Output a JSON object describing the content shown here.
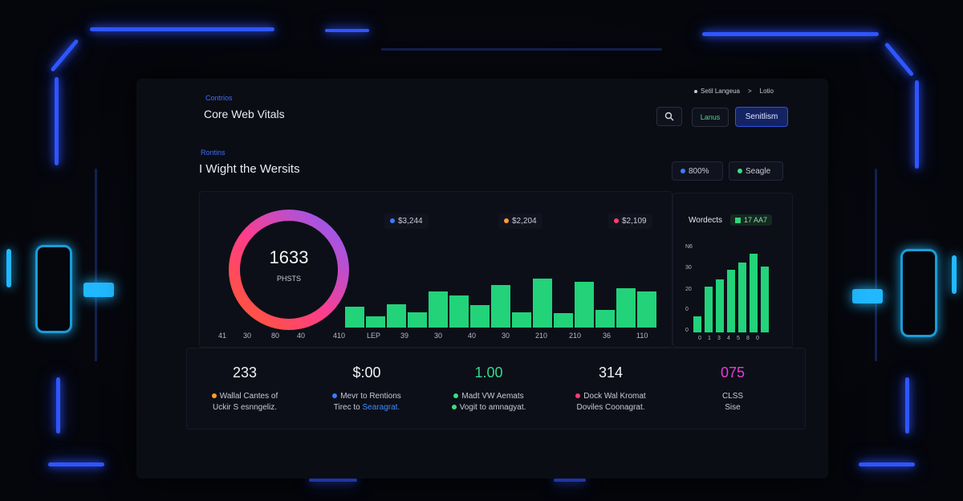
{
  "header": {
    "crumb": "Contrios",
    "title": "Core Web Vitals",
    "links": {
      "item1": "Setil Langeua",
      "sep": ">",
      "item2": "Lotio"
    },
    "search_icon": "search-icon",
    "green_button": "Lanus",
    "primary_button": "Senitlism"
  },
  "section": {
    "crumb": "Rontins",
    "title": "I Wight the Wersits",
    "pill_blue": "800%",
    "pill_green": "Seagle"
  },
  "chart_main": {
    "donut_value": "1633",
    "donut_label": "PHSTS",
    "donut_ticks": [
      "41",
      "30",
      "80",
      "40"
    ],
    "legend": [
      {
        "label": "$3,244",
        "color": "#3d7bff"
      },
      {
        "label": "$2,204",
        "color": "#ff9d2e"
      },
      {
        "label": "$2,109",
        "color": "#ff3d6e"
      }
    ],
    "bar_ticks": [
      "410",
      "LEP",
      "39",
      "30",
      "40",
      "30",
      "210",
      "210",
      "36",
      "110"
    ]
  },
  "chart_data": [
    {
      "type": "bar",
      "title": "",
      "values": [
        26,
        14,
        29,
        19,
        45,
        40,
        28,
        53,
        19,
        61,
        18,
        57,
        22,
        49,
        45
      ],
      "color": "#22d37a",
      "ylim": [
        0,
        70
      ]
    },
    {
      "type": "bar",
      "title": "Wordects",
      "badge": "17 AA7",
      "yticks": [
        "N6",
        "30",
        "20",
        "0",
        "0"
      ],
      "xticks": [
        "0",
        "1",
        "3",
        "4",
        "5",
        "8",
        "0"
      ],
      "values": [
        20,
        57,
        66,
        78,
        87,
        98,
        82
      ],
      "color": "#22d37a",
      "ylim": [
        0,
        100
      ]
    }
  ],
  "metrics": [
    {
      "value": "233",
      "value_color": "#f1f2f6",
      "line1": "Wallal Cantes of",
      "line2": "Uckir S esnngeliz.",
      "dot1": "#ff9d2e",
      "dot2": "",
      "hl": ""
    },
    {
      "value": "$:00",
      "value_color": "#f1f2f6",
      "line1": "Mevr to Rentions",
      "line2": "Tirec to ",
      "hl": "Searagrat.",
      "dot1": "#3d7bff",
      "dot2": ""
    },
    {
      "value": "1.00",
      "value_color": "#36d98a",
      "line1": "Madt VW Aemats",
      "line2": "Vogit to amnagyat.",
      "dot1": "#3ddc84",
      "dot2": "#3ddc84",
      "hl": ""
    },
    {
      "value": "314",
      "value_color": "#f1f2f6",
      "line1": "Dock Wal Kromat",
      "line2": "Doviles Coonagrat.",
      "dot1": "#ff3d6e",
      "dot2": "",
      "hl": ""
    },
    {
      "value": "075",
      "value_color": "#e93bd8",
      "line1": "CLSS",
      "line2": "Sise",
      "dot1": "",
      "dot2": "",
      "hl": ""
    }
  ]
}
